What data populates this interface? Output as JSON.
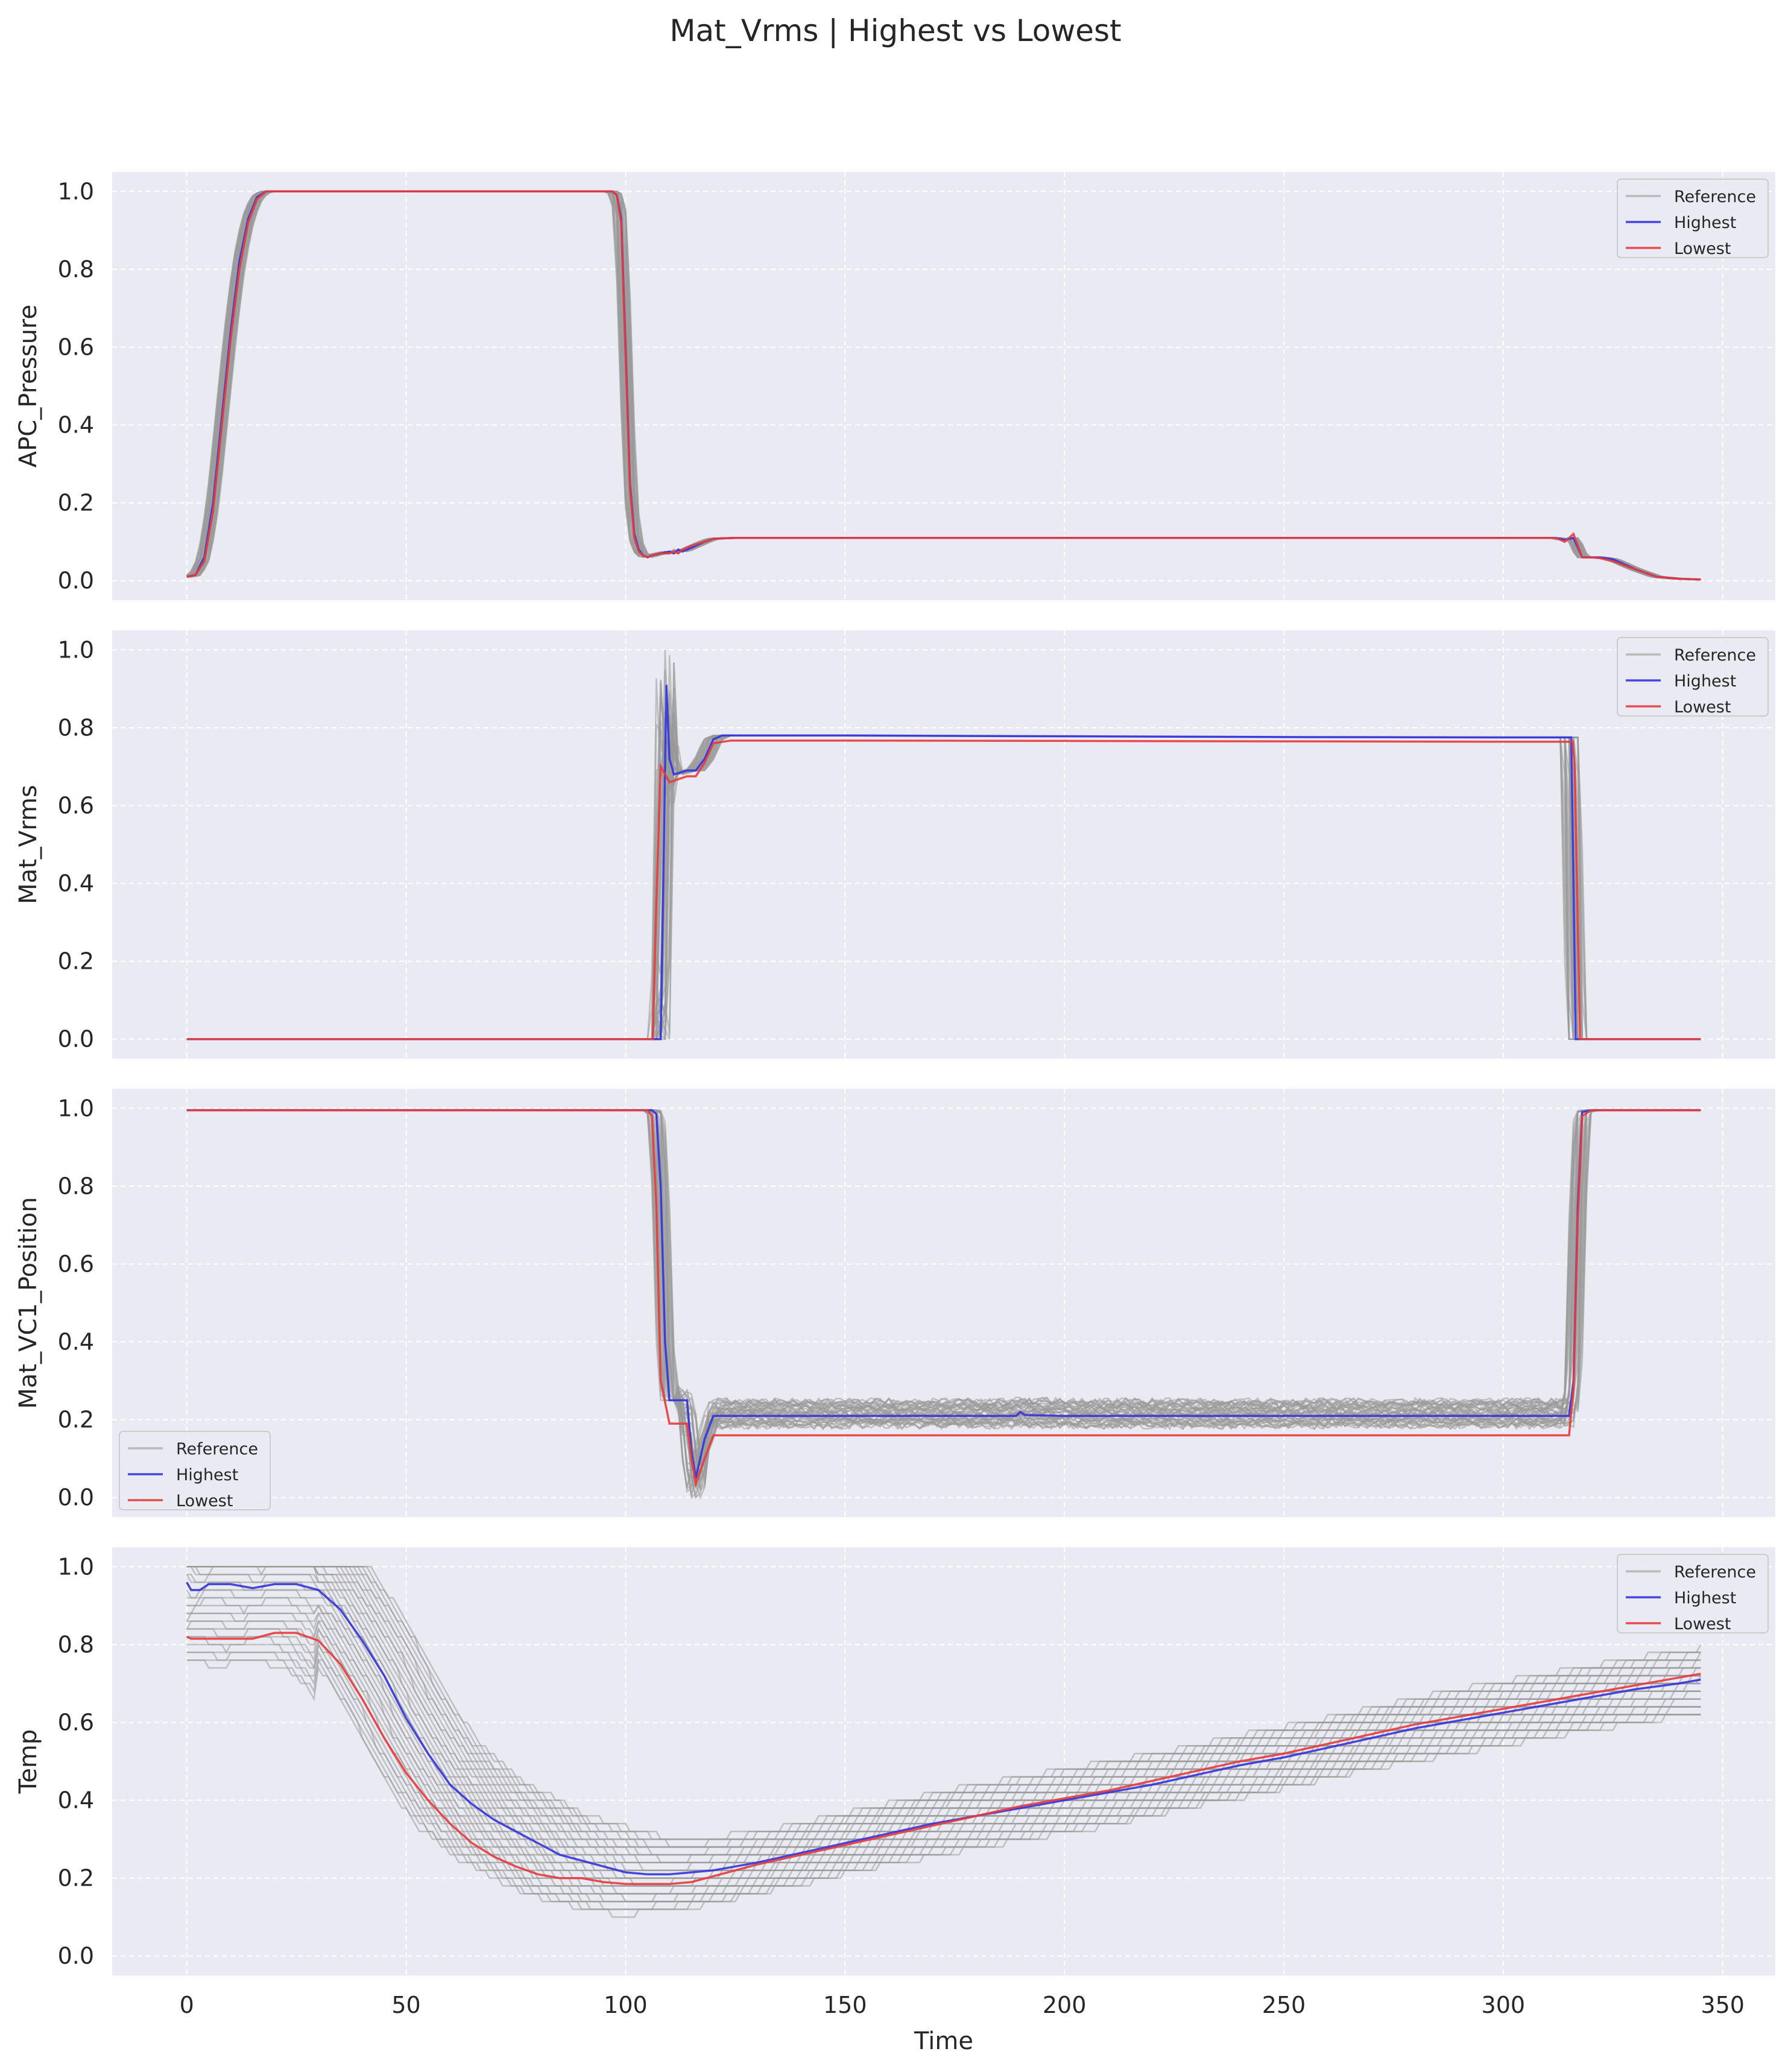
{
  "chart_data": {
    "type": "line",
    "title": "Mat_Vrms | Highest vs Lowest",
    "xlabel": "Time",
    "xlim": [
      -17,
      362
    ],
    "xticks": [
      0,
      50,
      100,
      150,
      200,
      250,
      300,
      350
    ],
    "grid": true,
    "colors": {
      "reference": "#999999",
      "highest": "#3333dd",
      "lowest": "#e83a3a",
      "axes_bg": "#eaeaf2",
      "grid": "#ffffff"
    },
    "panels": [
      {
        "ylabel": "APC_Pressure",
        "ylim": [
          -0.05,
          1.05
        ],
        "yticks": [
          "0.0",
          "0.2",
          "0.4",
          "0.6",
          "0.8",
          "1.0"
        ],
        "legend": {
          "loc": "upper-right",
          "entries": [
            "Reference",
            "Highest",
            "Lowest"
          ]
        },
        "series": [
          {
            "name": "Highest",
            "x": [
              0,
              2,
              4,
              6,
              8,
              10,
              12,
              14,
              16,
              18,
              20,
              25,
              30,
              50,
              90,
              95,
              97,
              98,
              99,
              100,
              101,
              102,
              103,
              104,
              105,
              106,
              108,
              110,
              111,
              112,
              113,
              115,
              118,
              120,
              125,
              150,
              200,
              250,
              300,
              312,
              314,
              316,
              318,
              320,
              322,
              325,
              330,
              335,
              340,
              345
            ],
            "y": [
              0.01,
              0.015,
              0.06,
              0.2,
              0.42,
              0.64,
              0.82,
              0.93,
              0.985,
              1.0,
              1.0,
              1.0,
              1.0,
              1.0,
              1.0,
              1.0,
              1.0,
              0.99,
              0.93,
              0.6,
              0.25,
              0.12,
              0.08,
              0.065,
              0.06,
              0.065,
              0.07,
              0.075,
              0.07,
              0.08,
              0.075,
              0.085,
              0.1,
              0.108,
              0.11,
              0.11,
              0.11,
              0.11,
              0.11,
              0.11,
              0.105,
              0.11,
              0.06,
              0.06,
              0.06,
              0.055,
              0.03,
              0.01,
              0.005,
              0.003
            ]
          },
          {
            "name": "Lowest",
            "x": [
              0,
              2,
              4,
              6,
              8,
              10,
              12,
              14,
              16,
              18,
              20,
              25,
              30,
              50,
              90,
              95,
              97,
              98,
              99,
              100,
              101,
              102,
              103,
              104,
              105,
              106,
              108,
              110,
              111,
              112,
              113,
              115,
              118,
              120,
              125,
              150,
              200,
              250,
              300,
              312,
              314,
              316,
              318,
              320,
              322,
              325,
              330,
              335,
              340,
              345
            ],
            "y": [
              0.01,
              0.015,
              0.05,
              0.18,
              0.4,
              0.62,
              0.8,
              0.92,
              0.98,
              1.0,
              1.0,
              1.0,
              1.0,
              1.0,
              1.0,
              1.0,
              1.0,
              0.99,
              0.92,
              0.58,
              0.24,
              0.11,
              0.075,
              0.065,
              0.06,
              0.065,
              0.07,
              0.07,
              0.075,
              0.07,
              0.08,
              0.09,
              0.1,
              0.108,
              0.11,
              0.11,
              0.11,
              0.11,
              0.11,
              0.11,
              0.1,
              0.12,
              0.06,
              0.06,
              0.058,
              0.05,
              0.03,
              0.01,
              0.005,
              0.003
            ]
          }
        ]
      },
      {
        "ylabel": "Mat_Vrms",
        "ylim": [
          -0.05,
          1.05
        ],
        "yticks": [
          "0.0",
          "0.2",
          "0.4",
          "0.6",
          "0.8",
          "1.0"
        ],
        "legend": {
          "loc": "upper-right",
          "entries": [
            "Reference",
            "Highest",
            "Lowest"
          ]
        },
        "series": [
          {
            "name": "Highest",
            "x": [
              0,
              50,
              100,
              107,
              108,
              108.6,
              109.3,
              110,
              111,
              114,
              116,
              118,
              120,
              122,
              150,
              200,
              250,
              300,
              315.5,
              316,
              316.5,
              317,
              330,
              345
            ],
            "y": [
              0,
              0,
              0,
              0,
              0,
              0.4,
              0.91,
              0.72,
              0.68,
              0.69,
              0.69,
              0.72,
              0.77,
              0.78,
              0.78,
              0.778,
              0.776,
              0.775,
              0.775,
              0.4,
              0.0,
              0,
              0,
              0
            ]
          },
          {
            "name": "Lowest",
            "x": [
              0,
              50,
              100,
              105.5,
              106.2,
              107,
              108,
              110,
              114,
              116,
              118,
              120,
              124,
              150,
              200,
              250,
              300,
              315.8,
              316.3,
              316.9,
              317.5,
              330,
              345
            ],
            "y": [
              0,
              0,
              0,
              0,
              0,
              0.35,
              0.7,
              0.66,
              0.675,
              0.675,
              0.71,
              0.76,
              0.767,
              0.767,
              0.766,
              0.765,
              0.764,
              0.764,
              0.7,
              0.35,
              0.0,
              0,
              0
            ]
          }
        ]
      },
      {
        "ylabel": "Mat_VC1_Position",
        "ylim": [
          -0.05,
          1.05
        ],
        "yticks": [
          "0.0",
          "0.2",
          "0.4",
          "0.6",
          "0.8",
          "1.0"
        ],
        "legend": {
          "loc": "lower-left",
          "entries": [
            "Reference",
            "Highest",
            "Lowest"
          ]
        },
        "series": [
          {
            "name": "Highest",
            "x": [
              0,
              50,
              100,
              106,
              107,
              108,
              109,
              110,
              112,
              113,
              114,
              115,
              116,
              118,
              120,
              125,
              150,
              189,
              190,
              191,
              200,
              250,
              300,
              314,
              315,
              316,
              317,
              318,
              320,
              345
            ],
            "y": [
              0.995,
              0.995,
              0.995,
              0.995,
              0.985,
              0.8,
              0.4,
              0.25,
              0.25,
              0.25,
              0.25,
              0.12,
              0.05,
              0.15,
              0.21,
              0.21,
              0.21,
              0.21,
              0.22,
              0.212,
              0.21,
              0.21,
              0.21,
              0.21,
              0.21,
              0.3,
              0.75,
              0.99,
              0.995,
              0.995
            ]
          },
          {
            "name": "Lowest",
            "x": [
              0,
              50,
              100,
              105,
              106,
              107,
              108,
              110,
              112,
              113,
              114,
              115,
              116,
              118,
              120,
              125,
              150,
              200,
              250,
              300,
              315,
              316,
              317,
              318,
              320,
              345
            ],
            "y": [
              0.995,
              0.995,
              0.995,
              0.995,
              0.98,
              0.75,
              0.3,
              0.19,
              0.19,
              0.19,
              0.19,
              0.1,
              0.035,
              0.1,
              0.16,
              0.16,
              0.16,
              0.16,
              0.16,
              0.16,
              0.16,
              0.28,
              0.72,
              0.98,
              0.995,
              0.995
            ]
          }
        ]
      },
      {
        "ylabel": "Temp",
        "ylim": [
          -0.05,
          1.05
        ],
        "yticks": [
          "0.0",
          "0.2",
          "0.4",
          "0.6",
          "0.8",
          "1.0"
        ],
        "legend": {
          "loc": "upper-right",
          "entries": [
            "Reference",
            "Highest",
            "Lowest"
          ]
        },
        "series": [
          {
            "name": "Highest",
            "x": [
              0,
              1,
              3,
              5,
              10,
              15,
              20,
              25,
              30,
              35,
              40,
              45,
              50,
              55,
              60,
              65,
              70,
              75,
              80,
              85,
              90,
              95,
              100,
              105,
              110,
              115,
              120,
              130,
              140,
              150,
              160,
              170,
              180,
              190,
              200,
              210,
              220,
              230,
              240,
              250,
              260,
              270,
              280,
              290,
              300,
              310,
              320,
              330,
              340,
              345
            ],
            "y": [
              0.96,
              0.94,
              0.94,
              0.955,
              0.955,
              0.945,
              0.955,
              0.955,
              0.94,
              0.89,
              0.81,
              0.72,
              0.61,
              0.52,
              0.44,
              0.39,
              0.35,
              0.32,
              0.29,
              0.26,
              0.245,
              0.23,
              0.215,
              0.21,
              0.21,
              0.215,
              0.22,
              0.24,
              0.265,
              0.29,
              0.315,
              0.34,
              0.36,
              0.38,
              0.4,
              0.42,
              0.44,
              0.465,
              0.49,
              0.51,
              0.535,
              0.56,
              0.585,
              0.605,
              0.625,
              0.645,
              0.665,
              0.685,
              0.7,
              0.71
            ]
          },
          {
            "name": "Lowest",
            "x": [
              0,
              1,
              3,
              5,
              10,
              15,
              20,
              25,
              30,
              35,
              40,
              45,
              50,
              55,
              60,
              65,
              70,
              75,
              80,
              85,
              90,
              95,
              100,
              105,
              110,
              115,
              120,
              130,
              140,
              150,
              160,
              170,
              180,
              190,
              200,
              210,
              220,
              230,
              240,
              250,
              260,
              270,
              280,
              290,
              300,
              310,
              320,
              330,
              340,
              345
            ],
            "y": [
              0.82,
              0.815,
              0.815,
              0.815,
              0.815,
              0.815,
              0.83,
              0.83,
              0.81,
              0.75,
              0.66,
              0.56,
              0.47,
              0.4,
              0.34,
              0.29,
              0.255,
              0.23,
              0.21,
              0.2,
              0.2,
              0.19,
              0.185,
              0.185,
              0.185,
              0.19,
              0.205,
              0.235,
              0.26,
              0.285,
              0.31,
              0.335,
              0.36,
              0.385,
              0.405,
              0.425,
              0.45,
              0.475,
              0.5,
              0.52,
              0.545,
              0.57,
              0.595,
              0.615,
              0.635,
              0.655,
              0.675,
              0.695,
              0.715,
              0.725
            ]
          }
        ]
      }
    ]
  }
}
